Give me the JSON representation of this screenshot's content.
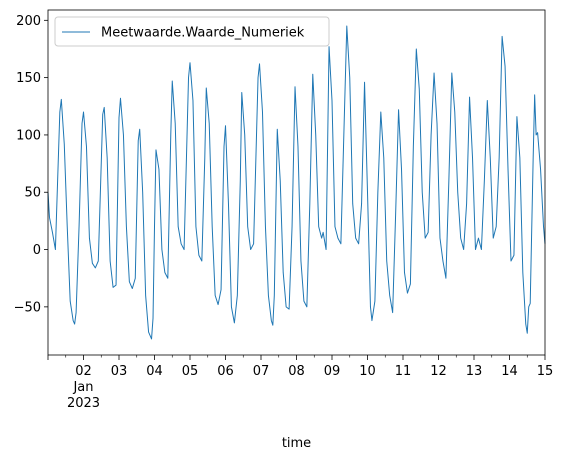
{
  "chart_data": {
    "type": "line",
    "title": "",
    "xlabel": "time",
    "ylabel": "",
    "x_range": [
      "2023-01-01T00:00",
      "2023-01-15T00:00"
    ],
    "ylim": [
      -92,
      209
    ],
    "y_ticks": [
      -50,
      0,
      50,
      100,
      150,
      200
    ],
    "x_ticks": [
      {
        "date": "2023-01-02",
        "label": "02"
      },
      {
        "date": "2023-01-03",
        "label": "03"
      },
      {
        "date": "2023-01-04",
        "label": "04"
      },
      {
        "date": "2023-01-05",
        "label": "05"
      },
      {
        "date": "2023-01-06",
        "label": "06"
      },
      {
        "date": "2023-01-07",
        "label": "07"
      },
      {
        "date": "2023-01-08",
        "label": "08"
      },
      {
        "date": "2023-01-09",
        "label": "09"
      },
      {
        "date": "2023-01-10",
        "label": "10"
      },
      {
        "date": "2023-01-11",
        "label": "11"
      },
      {
        "date": "2023-01-12",
        "label": "12"
      },
      {
        "date": "2023-01-13",
        "label": "13"
      },
      {
        "date": "2023-01-14",
        "label": "14"
      },
      {
        "date": "2023-01-15",
        "label": "15"
      }
    ],
    "x_secondary_label": {
      "month": "Jan",
      "year": "2023"
    },
    "grid": false,
    "legend_position": "top-left",
    "series": [
      {
        "name": "Meetwaarde.Waarde_Numeriek",
        "color": "#1f77b4",
        "points": [
          [
            "2023-01-01T00:00",
            50
          ],
          [
            "2023-01-01T01:00",
            28
          ],
          [
            "2023-01-01T03:00",
            15
          ],
          [
            "2023-01-01T05:00",
            0
          ],
          [
            "2023-01-01T08:00",
            120
          ],
          [
            "2023-01-01T09:00",
            131
          ],
          [
            "2023-01-01T11:00",
            92
          ],
          [
            "2023-01-01T13:00",
            20
          ],
          [
            "2023-01-01T15:00",
            -45
          ],
          [
            "2023-01-01T17:00",
            -62
          ],
          [
            "2023-01-01T18:00",
            -65
          ],
          [
            "2023-01-01T19:00",
            -55
          ],
          [
            "2023-01-01T21:00",
            20
          ],
          [
            "2023-01-01T23:00",
            110
          ],
          [
            "2023-01-02T00:00",
            120
          ],
          [
            "2023-01-02T02:00",
            90
          ],
          [
            "2023-01-02T04:00",
            10
          ],
          [
            "2023-01-02T06:00",
            -12
          ],
          [
            "2023-01-02T08:00",
            -16
          ],
          [
            "2023-01-02T10:00",
            -10
          ],
          [
            "2023-01-02T13:00",
            118
          ],
          [
            "2023-01-02T14:00",
            124
          ],
          [
            "2023-01-02T16:00",
            80
          ],
          [
            "2023-01-02T18:00",
            -10
          ],
          [
            "2023-01-02T20:00",
            -33
          ],
          [
            "2023-01-02T22:00",
            -31
          ],
          [
            "2023-01-03T00:00",
            115
          ],
          [
            "2023-01-03T01:00",
            132
          ],
          [
            "2023-01-03T03:00",
            100
          ],
          [
            "2023-01-03T05:00",
            20
          ],
          [
            "2023-01-03T07:00",
            -28
          ],
          [
            "2023-01-03T09:00",
            -34
          ],
          [
            "2023-01-03T11:00",
            -25
          ],
          [
            "2023-01-03T13:00",
            95
          ],
          [
            "2023-01-03T14:00",
            105
          ],
          [
            "2023-01-03T16:00",
            50
          ],
          [
            "2023-01-03T18:00",
            -40
          ],
          [
            "2023-01-03T20:00",
            -72
          ],
          [
            "2023-01-03T22:00",
            -78
          ],
          [
            "2023-01-03T23:00",
            -60
          ],
          [
            "2023-01-04T00:00",
            20
          ],
          [
            "2023-01-04T01:00",
            87
          ],
          [
            "2023-01-04T03:00",
            70
          ],
          [
            "2023-01-04T05:00",
            0
          ],
          [
            "2023-01-04T07:00",
            -20
          ],
          [
            "2023-01-04T09:00",
            -25
          ],
          [
            "2023-01-04T11:00",
            100
          ],
          [
            "2023-01-04T12:00",
            147
          ],
          [
            "2023-01-04T14:00",
            110
          ],
          [
            "2023-01-04T16:00",
            20
          ],
          [
            "2023-01-04T18:00",
            5
          ],
          [
            "2023-01-04T20:00",
            0
          ],
          [
            "2023-01-04T23:00",
            150
          ],
          [
            "2023-01-05T00:00",
            163
          ],
          [
            "2023-01-05T02:00",
            130
          ],
          [
            "2023-01-05T04:00",
            20
          ],
          [
            "2023-01-05T06:00",
            -5
          ],
          [
            "2023-01-05T08:00",
            -10
          ],
          [
            "2023-01-05T10:00",
            80
          ],
          [
            "2023-01-05T11:00",
            141
          ],
          [
            "2023-01-05T13:00",
            110
          ],
          [
            "2023-01-05T15:00",
            20
          ],
          [
            "2023-01-05T17:00",
            -40
          ],
          [
            "2023-01-05T19:00",
            -48
          ],
          [
            "2023-01-05T21:00",
            -35
          ],
          [
            "2023-01-05T23:00",
            90
          ],
          [
            "2023-01-06T00:00",
            108
          ],
          [
            "2023-01-06T02:00",
            40
          ],
          [
            "2023-01-06T04:00",
            -50
          ],
          [
            "2023-01-06T06:00",
            -64
          ],
          [
            "2023-01-06T08:00",
            -40
          ],
          [
            "2023-01-06T10:00",
            60
          ],
          [
            "2023-01-06T11:00",
            137
          ],
          [
            "2023-01-06T13:00",
            100
          ],
          [
            "2023-01-06T15:00",
            20
          ],
          [
            "2023-01-06T17:00",
            0
          ],
          [
            "2023-01-06T19:00",
            5
          ],
          [
            "2023-01-06T22:00",
            150
          ],
          [
            "2023-01-06T23:00",
            162
          ],
          [
            "2023-01-07T01:00",
            120
          ],
          [
            "2023-01-07T03:00",
            20
          ],
          [
            "2023-01-07T05:00",
            -40
          ],
          [
            "2023-01-07T07:00",
            -62
          ],
          [
            "2023-01-07T08:00",
            -66
          ],
          [
            "2023-01-07T09:00",
            -40
          ],
          [
            "2023-01-07T11:00",
            105
          ],
          [
            "2023-01-07T13:00",
            60
          ],
          [
            "2023-01-07T15:00",
            -20
          ],
          [
            "2023-01-07T17:00",
            -50
          ],
          [
            "2023-01-07T19:00",
            -52
          ],
          [
            "2023-01-07T21:00",
            20
          ],
          [
            "2023-01-07T23:00",
            142
          ],
          [
            "2023-01-08T01:00",
            90
          ],
          [
            "2023-01-08T03:00",
            -10
          ],
          [
            "2023-01-08T05:00",
            -45
          ],
          [
            "2023-01-08T07:00",
            -50
          ],
          [
            "2023-01-08T09:00",
            40
          ],
          [
            "2023-01-08T11:00",
            153
          ],
          [
            "2023-01-08T13:00",
            100
          ],
          [
            "2023-01-08T15:00",
            20
          ],
          [
            "2023-01-08T17:00",
            10
          ],
          [
            "2023-01-08T18:00",
            15
          ],
          [
            "2023-01-08T20:00",
            0
          ],
          [
            "2023-01-08T22:00",
            177
          ],
          [
            "2023-01-09T00:00",
            130
          ],
          [
            "2023-01-09T02:00",
            20
          ],
          [
            "2023-01-09T04:00",
            10
          ],
          [
            "2023-01-09T06:00",
            5
          ],
          [
            "2023-01-09T08:00",
            100
          ],
          [
            "2023-01-09T10:00",
            195
          ],
          [
            "2023-01-09T12:00",
            150
          ],
          [
            "2023-01-09T14:00",
            40
          ],
          [
            "2023-01-09T16:00",
            10
          ],
          [
            "2023-01-09T18:00",
            5
          ],
          [
            "2023-01-09T20:00",
            40
          ],
          [
            "2023-01-09T22:00",
            146
          ],
          [
            "2023-01-10T00:00",
            50
          ],
          [
            "2023-01-10T02:00",
            -50
          ],
          [
            "2023-01-10T03:00",
            -62
          ],
          [
            "2023-01-10T05:00",
            -45
          ],
          [
            "2023-01-10T07:00",
            50
          ],
          [
            "2023-01-10T09:00",
            120
          ],
          [
            "2023-01-10T11:00",
            80
          ],
          [
            "2023-01-10T13:00",
            -10
          ],
          [
            "2023-01-10T15:00",
            -40
          ],
          [
            "2023-01-10T17:00",
            -55
          ],
          [
            "2023-01-10T19:00",
            30
          ],
          [
            "2023-01-10T21:00",
            122
          ],
          [
            "2023-01-10T23:00",
            70
          ],
          [
            "2023-01-11T01:00",
            -20
          ],
          [
            "2023-01-11T03:00",
            -38
          ],
          [
            "2023-01-11T05:00",
            -30
          ],
          [
            "2023-01-11T07:00",
            90
          ],
          [
            "2023-01-11T09:00",
            175
          ],
          [
            "2023-01-11T11:00",
            140
          ],
          [
            "2023-01-11T13:00",
            50
          ],
          [
            "2023-01-11T15:00",
            10
          ],
          [
            "2023-01-11T17:00",
            15
          ],
          [
            "2023-01-11T19:00",
            100
          ],
          [
            "2023-01-11T21:00",
            154
          ],
          [
            "2023-01-11T23:00",
            110
          ],
          [
            "2023-01-12T01:00",
            10
          ],
          [
            "2023-01-12T03:00",
            -10
          ],
          [
            "2023-01-12T05:00",
            -25
          ],
          [
            "2023-01-12T07:00",
            60
          ],
          [
            "2023-01-12T09:00",
            154
          ],
          [
            "2023-01-12T11:00",
            120
          ],
          [
            "2023-01-12T13:00",
            50
          ],
          [
            "2023-01-12T15:00",
            10
          ],
          [
            "2023-01-12T17:00",
            0
          ],
          [
            "2023-01-12T19:00",
            40
          ],
          [
            "2023-01-12T21:00",
            133
          ],
          [
            "2023-01-12T23:00",
            80
          ],
          [
            "2023-01-13T01:00",
            0
          ],
          [
            "2023-01-13T03:00",
            10
          ],
          [
            "2023-01-13T05:00",
            0
          ],
          [
            "2023-01-13T07:00",
            60
          ],
          [
            "2023-01-13T09:00",
            130
          ],
          [
            "2023-01-13T11:00",
            80
          ],
          [
            "2023-01-13T13:00",
            10
          ],
          [
            "2023-01-13T15:00",
            20
          ],
          [
            "2023-01-13T17:00",
            80
          ],
          [
            "2023-01-13T19:00",
            186
          ],
          [
            "2023-01-13T21:00",
            160
          ],
          [
            "2023-01-13T23:00",
            70
          ],
          [
            "2023-01-14T01:00",
            -10
          ],
          [
            "2023-01-14T03:00",
            -5
          ],
          [
            "2023-01-14T05:00",
            116
          ],
          [
            "2023-01-14T07:00",
            80
          ],
          [
            "2023-01-14T09:00",
            -20
          ],
          [
            "2023-01-14T11:00",
            -65
          ],
          [
            "2023-01-14T12:00",
            -73
          ],
          [
            "2023-01-14T13:00",
            -50
          ],
          [
            "2023-01-14T14:00",
            -47
          ],
          [
            "2023-01-14T16:00",
            80
          ],
          [
            "2023-01-14T17:00",
            135
          ],
          [
            "2023-01-14T18:00",
            100
          ],
          [
            "2023-01-14T19:00",
            102
          ],
          [
            "2023-01-14T21:00",
            70
          ],
          [
            "2023-01-14T23:00",
            20
          ],
          [
            "2023-01-15T00:00",
            5
          ]
        ]
      }
    ]
  }
}
